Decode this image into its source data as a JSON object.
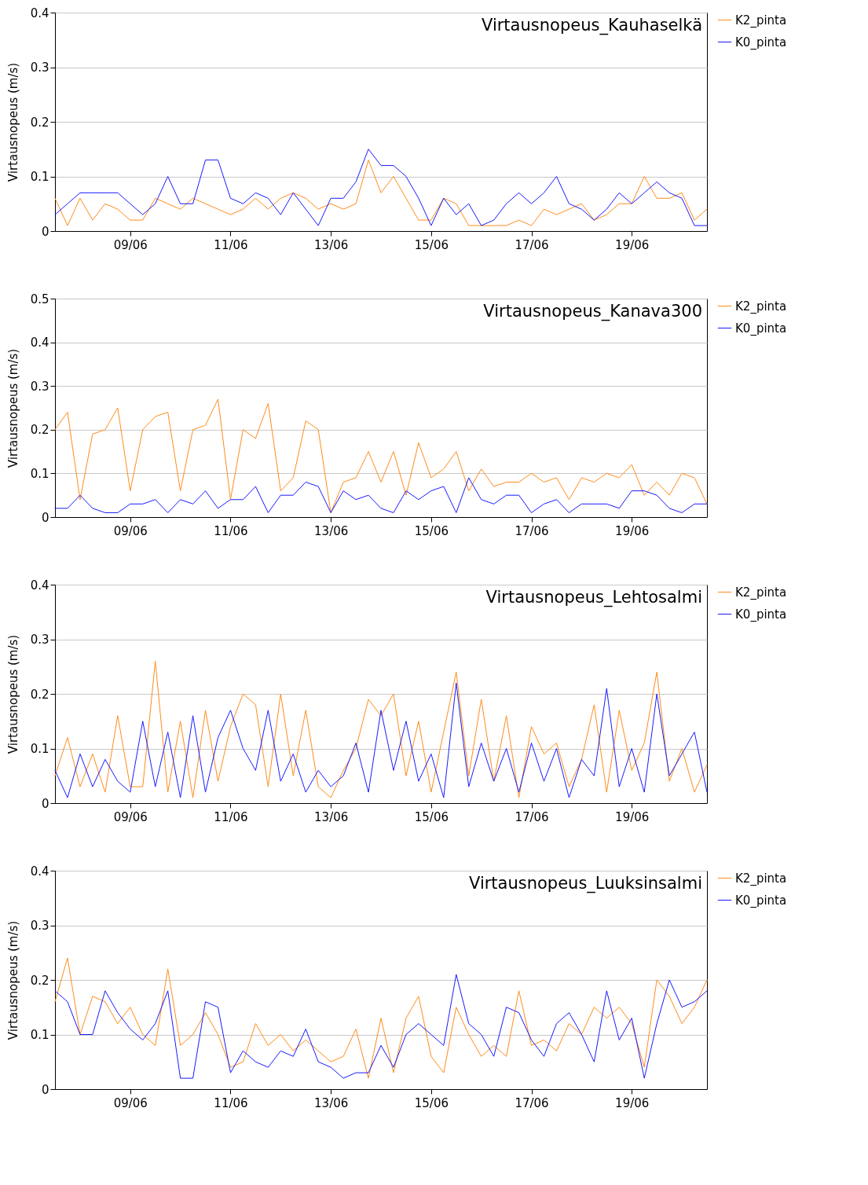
{
  "chart_data": [
    {
      "type": "line",
      "title": "Virtausnopeus_Kauhaselkä",
      "ylabel": "Virtausnopeus (m/s)",
      "grid": "y",
      "legend": "right",
      "x": [
        "--06-07T12:00",
        "--06-07T18:00",
        "--06-08T00:00",
        "--06-08T06:00",
        "--06-08T12:00",
        "--06-08T18:00",
        "--06-09T00:00",
        "--06-09T06:00",
        "--06-09T12:00",
        "--06-09T18:00",
        "--06-10T00:00",
        "--06-10T06:00",
        "--06-10T12:00",
        "--06-10T18:00",
        "--06-11T00:00",
        "--06-11T06:00",
        "--06-11T12:00",
        "--06-11T18:00",
        "--06-12T00:00",
        "--06-12T06:00",
        "--06-12T12:00",
        "--06-12T18:00",
        "--06-13T00:00",
        "--06-13T06:00",
        "--06-13T12:00",
        "--06-13T18:00",
        "--06-14T00:00",
        "--06-14T06:00",
        "--06-14T12:00",
        "--06-14T18:00",
        "--06-15T00:00",
        "--06-15T06:00",
        "--06-15T12:00",
        "--06-15T18:00",
        "--06-16T00:00",
        "--06-16T06:00",
        "--06-16T12:00",
        "--06-16T18:00",
        "--06-17T00:00",
        "--06-17T06:00",
        "--06-17T12:00",
        "--06-17T18:00",
        "--06-18T00:00",
        "--06-18T06:00",
        "--06-18T12:00",
        "--06-18T18:00",
        "--06-19T00:00",
        "--06-19T06:00",
        "--06-19T12:00",
        "--06-19T18:00",
        "--06-20T00:00",
        "--06-20T06:00",
        "--06-20T12:00"
      ],
      "xlim": [
        "--06-07T12:00",
        "--06-20T12:00"
      ],
      "xticks": [
        {
          "value": "--06-09",
          "label": "09/06"
        },
        {
          "value": "--06-11",
          "label": "11/06"
        },
        {
          "value": "--06-13",
          "label": "13/06"
        },
        {
          "value": "--06-15",
          "label": "15/06"
        },
        {
          "value": "--06-17",
          "label": "17/06"
        },
        {
          "value": "--06-19",
          "label": "19/06"
        }
      ],
      "ylim": [
        0,
        0.4
      ],
      "yticks": [
        0,
        0.1,
        0.2,
        0.3,
        0.4
      ],
      "series": [
        {
          "name": "K2_pinta",
          "color": "#ff8c1a",
          "values": [
            0.06,
            0.01,
            0.06,
            0.02,
            0.05,
            0.04,
            0.02,
            0.02,
            0.06,
            0.05,
            0.04,
            0.06,
            0.05,
            0.04,
            0.03,
            0.04,
            0.06,
            0.04,
            0.06,
            0.07,
            0.06,
            0.04,
            0.05,
            0.04,
            0.05,
            0.13,
            0.07,
            0.1,
            0.06,
            0.02,
            0.02,
            0.06,
            0.05,
            0.01,
            0.01,
            0.01,
            0.01,
            0.02,
            0.01,
            0.04,
            0.03,
            0.04,
            0.05,
            0.02,
            0.03,
            0.05,
            0.05,
            0.1,
            0.06,
            0.06,
            0.07,
            0.02,
            0.04
          ]
        },
        {
          "name": "K0_pinta",
          "color": "#1a1aff",
          "values": [
            0.03,
            0.05,
            0.07,
            0.07,
            0.07,
            0.07,
            0.05,
            0.03,
            0.05,
            0.1,
            0.05,
            0.05,
            0.13,
            0.13,
            0.06,
            0.05,
            0.07,
            0.06,
            0.03,
            0.07,
            0.04,
            0.01,
            0.06,
            0.06,
            0.09,
            0.15,
            0.12,
            0.12,
            0.1,
            0.06,
            0.01,
            0.06,
            0.03,
            0.05,
            0.01,
            0.02,
            0.05,
            0.07,
            0.05,
            0.07,
            0.1,
            0.05,
            0.04,
            0.02,
            0.04,
            0.07,
            0.05,
            0.07,
            0.09,
            0.07,
            0.06,
            0.01,
            0.01
          ]
        }
      ]
    },
    {
      "type": "line",
      "title": "Virtausnopeus_Kanava300",
      "ylabel": "Virtausnopeus (m/s)",
      "grid": "y",
      "legend": "right",
      "x": [
        "--06-07T12:00",
        "--06-07T18:00",
        "--06-08T00:00",
        "--06-08T06:00",
        "--06-08T12:00",
        "--06-08T18:00",
        "--06-09T00:00",
        "--06-09T06:00",
        "--06-09T12:00",
        "--06-09T18:00",
        "--06-10T00:00",
        "--06-10T06:00",
        "--06-10T12:00",
        "--06-10T18:00",
        "--06-11T00:00",
        "--06-11T06:00",
        "--06-11T12:00",
        "--06-11T18:00",
        "--06-12T00:00",
        "--06-12T06:00",
        "--06-12T12:00",
        "--06-12T18:00",
        "--06-13T00:00",
        "--06-13T06:00",
        "--06-13T12:00",
        "--06-13T18:00",
        "--06-14T00:00",
        "--06-14T06:00",
        "--06-14T12:00",
        "--06-14T18:00",
        "--06-15T00:00",
        "--06-15T06:00",
        "--06-15T12:00",
        "--06-15T18:00",
        "--06-16T00:00",
        "--06-16T06:00",
        "--06-16T12:00",
        "--06-16T18:00",
        "--06-17T00:00",
        "--06-17T06:00",
        "--06-17T12:00",
        "--06-17T18:00",
        "--06-18T00:00",
        "--06-18T06:00",
        "--06-18T12:00",
        "--06-18T18:00",
        "--06-19T00:00",
        "--06-19T06:00",
        "--06-19T12:00",
        "--06-19T18:00",
        "--06-20T00:00",
        "--06-20T06:00",
        "--06-20T12:00"
      ],
      "xlim": [
        "--06-07T12:00",
        "--06-20T12:00"
      ],
      "xticks": [
        {
          "value": "--06-09",
          "label": "09/06"
        },
        {
          "value": "--06-11",
          "label": "11/06"
        },
        {
          "value": "--06-13",
          "label": "13/06"
        },
        {
          "value": "--06-15",
          "label": "15/06"
        },
        {
          "value": "--06-17",
          "label": "17/06"
        },
        {
          "value": "--06-19",
          "label": "19/06"
        }
      ],
      "ylim": [
        0,
        0.5
      ],
      "yticks": [
        0,
        0.1,
        0.2,
        0.3,
        0.4,
        0.5
      ],
      "series": [
        {
          "name": "K2_pinta",
          "color": "#ff8c1a",
          "values": [
            0.2,
            0.24,
            0.04,
            0.19,
            0.2,
            0.25,
            0.06,
            0.2,
            0.23,
            0.24,
            0.06,
            0.2,
            0.21,
            0.27,
            0.04,
            0.2,
            0.18,
            0.26,
            0.06,
            0.09,
            0.22,
            0.2,
            0.01,
            0.08,
            0.09,
            0.15,
            0.08,
            0.15,
            0.05,
            0.17,
            0.09,
            0.11,
            0.15,
            0.06,
            0.11,
            0.07,
            0.08,
            0.08,
            0.1,
            0.08,
            0.09,
            0.04,
            0.09,
            0.08,
            0.1,
            0.09,
            0.12,
            0.05,
            0.08,
            0.05,
            0.1,
            0.09,
            0.03
          ]
        },
        {
          "name": "K0_pinta",
          "color": "#1a1aff",
          "values": [
            0.02,
            0.02,
            0.05,
            0.02,
            0.01,
            0.01,
            0.03,
            0.03,
            0.04,
            0.01,
            0.04,
            0.03,
            0.06,
            0.02,
            0.04,
            0.04,
            0.07,
            0.01,
            0.05,
            0.05,
            0.08,
            0.07,
            0.01,
            0.06,
            0.04,
            0.05,
            0.02,
            0.01,
            0.06,
            0.04,
            0.06,
            0.07,
            0.01,
            0.09,
            0.04,
            0.03,
            0.05,
            0.05,
            0.01,
            0.03,
            0.04,
            0.01,
            0.03,
            0.03,
            0.03,
            0.02,
            0.06,
            0.06,
            0.05,
            0.02,
            0.01,
            0.03,
            0.03
          ]
        }
      ]
    },
    {
      "type": "line",
      "title": "Virtausnopeus_Lehtosalmi",
      "ylabel": "Virtausnopeus (m/s)",
      "grid": "y",
      "legend": "right",
      "x": [
        "--06-07T12:00",
        "--06-07T18:00",
        "--06-08T00:00",
        "--06-08T06:00",
        "--06-08T12:00",
        "--06-08T18:00",
        "--06-09T00:00",
        "--06-09T06:00",
        "--06-09T12:00",
        "--06-09T18:00",
        "--06-10T00:00",
        "--06-10T06:00",
        "--06-10T12:00",
        "--06-10T18:00",
        "--06-11T00:00",
        "--06-11T06:00",
        "--06-11T12:00",
        "--06-11T18:00",
        "--06-12T00:00",
        "--06-12T06:00",
        "--06-12T12:00",
        "--06-12T18:00",
        "--06-13T00:00",
        "--06-13T06:00",
        "--06-13T12:00",
        "--06-13T18:00",
        "--06-14T00:00",
        "--06-14T06:00",
        "--06-14T12:00",
        "--06-14T18:00",
        "--06-15T00:00",
        "--06-15T06:00",
        "--06-15T12:00",
        "--06-15T18:00",
        "--06-16T00:00",
        "--06-16T06:00",
        "--06-16T12:00",
        "--06-16T18:00",
        "--06-17T00:00",
        "--06-17T06:00",
        "--06-17T12:00",
        "--06-17T18:00",
        "--06-18T00:00",
        "--06-18T06:00",
        "--06-18T12:00",
        "--06-18T18:00",
        "--06-19T00:00",
        "--06-19T06:00",
        "--06-19T12:00",
        "--06-19T18:00",
        "--06-20T00:00",
        "--06-20T06:00",
        "--06-20T12:00"
      ],
      "xlim": [
        "--06-07T12:00",
        "--06-20T12:00"
      ],
      "xticks": [
        {
          "value": "--06-09",
          "label": "09/06"
        },
        {
          "value": "--06-11",
          "label": "11/06"
        },
        {
          "value": "--06-13",
          "label": "13/06"
        },
        {
          "value": "--06-15",
          "label": "15/06"
        },
        {
          "value": "--06-17",
          "label": "17/06"
        },
        {
          "value": "--06-19",
          "label": "19/06"
        }
      ],
      "ylim": [
        0,
        0.4
      ],
      "yticks": [
        0,
        0.1,
        0.2,
        0.3,
        0.4
      ],
      "series": [
        {
          "name": "K2_pinta",
          "color": "#ff8c1a",
          "values": [
            0.05,
            0.12,
            0.03,
            0.09,
            0.02,
            0.16,
            0.03,
            0.03,
            0.26,
            0.02,
            0.15,
            0.01,
            0.17,
            0.04,
            0.14,
            0.2,
            0.18,
            0.03,
            0.2,
            0.05,
            0.17,
            0.03,
            0.01,
            0.06,
            0.1,
            0.19,
            0.16,
            0.2,
            0.05,
            0.15,
            0.02,
            0.13,
            0.24,
            0.05,
            0.19,
            0.04,
            0.16,
            0.01,
            0.14,
            0.09,
            0.11,
            0.03,
            0.08,
            0.18,
            0.02,
            0.17,
            0.06,
            0.11,
            0.24,
            0.04,
            0.1,
            0.02,
            0.07
          ]
        },
        {
          "name": "K0_pinta",
          "color": "#1a1aff",
          "values": [
            0.06,
            0.01,
            0.09,
            0.03,
            0.08,
            0.04,
            0.02,
            0.15,
            0.03,
            0.13,
            0.01,
            0.16,
            0.02,
            0.12,
            0.17,
            0.1,
            0.06,
            0.17,
            0.04,
            0.09,
            0.02,
            0.06,
            0.03,
            0.05,
            0.11,
            0.02,
            0.17,
            0.06,
            0.15,
            0.04,
            0.09,
            0.01,
            0.22,
            0.03,
            0.11,
            0.04,
            0.1,
            0.02,
            0.11,
            0.04,
            0.1,
            0.01,
            0.08,
            0.05,
            0.21,
            0.03,
            0.1,
            0.02,
            0.2,
            0.05,
            0.09,
            0.13,
            0.02
          ]
        }
      ]
    },
    {
      "type": "line",
      "title": "Virtausnopeus_Luuksinsalmi",
      "ylabel": "Virtausnopeus (m/s)",
      "grid": "y",
      "legend": "right",
      "x": [
        "--06-07T12:00",
        "--06-07T18:00",
        "--06-08T00:00",
        "--06-08T06:00",
        "--06-08T12:00",
        "--06-08T18:00",
        "--06-09T00:00",
        "--06-09T06:00",
        "--06-09T12:00",
        "--06-09T18:00",
        "--06-10T00:00",
        "--06-10T06:00",
        "--06-10T12:00",
        "--06-10T18:00",
        "--06-11T00:00",
        "--06-11T06:00",
        "--06-11T12:00",
        "--06-11T18:00",
        "--06-12T00:00",
        "--06-12T06:00",
        "--06-12T12:00",
        "--06-12T18:00",
        "--06-13T00:00",
        "--06-13T06:00",
        "--06-13T12:00",
        "--06-13T18:00",
        "--06-14T00:00",
        "--06-14T06:00",
        "--06-14T12:00",
        "--06-14T18:00",
        "--06-15T00:00",
        "--06-15T06:00",
        "--06-15T12:00",
        "--06-15T18:00",
        "--06-16T00:00",
        "--06-16T06:00",
        "--06-16T12:00",
        "--06-16T18:00",
        "--06-17T00:00",
        "--06-17T06:00",
        "--06-17T12:00",
        "--06-17T18:00",
        "--06-18T00:00",
        "--06-18T06:00",
        "--06-18T12:00",
        "--06-18T18:00",
        "--06-19T00:00",
        "--06-19T06:00",
        "--06-19T12:00",
        "--06-19T18:00",
        "--06-20T00:00",
        "--06-20T06:00",
        "--06-20T12:00"
      ],
      "xlim": [
        "--06-07T12:00",
        "--06-20T12:00"
      ],
      "xticks": [
        {
          "value": "--06-09",
          "label": "09/06"
        },
        {
          "value": "--06-11",
          "label": "11/06"
        },
        {
          "value": "--06-13",
          "label": "13/06"
        },
        {
          "value": "--06-15",
          "label": "15/06"
        },
        {
          "value": "--06-17",
          "label": "17/06"
        },
        {
          "value": "--06-19",
          "label": "19/06"
        }
      ],
      "ylim": [
        0,
        0.4
      ],
      "yticks": [
        0,
        0.1,
        0.2,
        0.3,
        0.4
      ],
      "series": [
        {
          "name": "K2_pinta",
          "color": "#ff8c1a",
          "values": [
            0.16,
            0.24,
            0.1,
            0.17,
            0.16,
            0.12,
            0.15,
            0.1,
            0.08,
            0.22,
            0.08,
            0.1,
            0.14,
            0.1,
            0.04,
            0.05,
            0.12,
            0.08,
            0.1,
            0.07,
            0.09,
            0.07,
            0.05,
            0.06,
            0.11,
            0.02,
            0.13,
            0.03,
            0.13,
            0.17,
            0.06,
            0.03,
            0.15,
            0.1,
            0.06,
            0.08,
            0.06,
            0.18,
            0.08,
            0.09,
            0.07,
            0.12,
            0.1,
            0.15,
            0.13,
            0.15,
            0.12,
            0.04,
            0.2,
            0.17,
            0.12,
            0.15,
            0.2
          ]
        },
        {
          "name": "K0_pinta",
          "color": "#1a1aff",
          "values": [
            0.18,
            0.16,
            0.1,
            0.1,
            0.18,
            0.14,
            0.11,
            0.09,
            0.12,
            0.18,
            0.02,
            0.02,
            0.16,
            0.15,
            0.03,
            0.07,
            0.05,
            0.04,
            0.07,
            0.06,
            0.11,
            0.05,
            0.04,
            0.02,
            0.03,
            0.03,
            0.08,
            0.04,
            0.1,
            0.12,
            0.1,
            0.08,
            0.21,
            0.12,
            0.1,
            0.06,
            0.15,
            0.14,
            0.09,
            0.06,
            0.12,
            0.14,
            0.1,
            0.05,
            0.18,
            0.09,
            0.13,
            0.02,
            0.12,
            0.2,
            0.15,
            0.16,
            0.18
          ]
        }
      ]
    }
  ]
}
